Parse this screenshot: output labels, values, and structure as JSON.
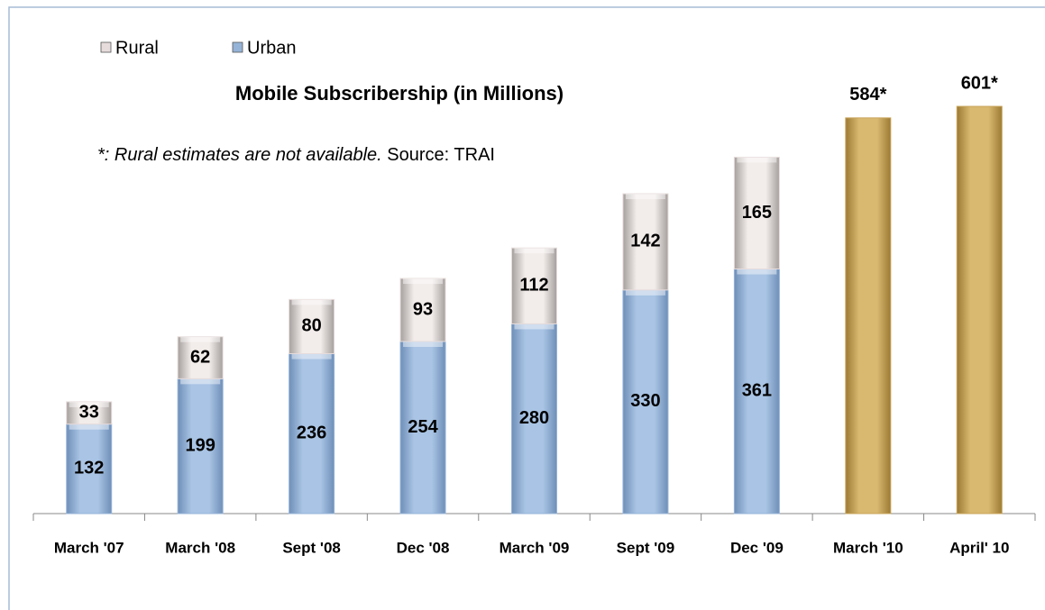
{
  "chart_data": {
    "type": "stacked_bar",
    "title": "Mobile Subscribership (in Millions)",
    "note": "*: Rural estimates are not available.",
    "source": "Source: TRAI",
    "categories": [
      "March '07",
      "March '08",
      "Sept '08",
      "Dec '08",
      "March '09",
      "Sept '09",
      "Dec '09",
      "March '10",
      "April' 10"
    ],
    "series": [
      {
        "name": "Urban",
        "color": "#95b3d7",
        "values": [
          132,
          199,
          236,
          254,
          280,
          330,
          361,
          null,
          null
        ]
      },
      {
        "name": "Rural",
        "color": "#e6dcdb",
        "values": [
          33,
          62,
          80,
          93,
          112,
          142,
          165,
          null,
          null
        ]
      }
    ],
    "totals": {
      "color": "#c9a45a",
      "values": [
        null,
        null,
        null,
        null,
        null,
        null,
        null,
        584,
        601
      ],
      "value_labels": [
        null,
        null,
        null,
        null,
        null,
        null,
        null,
        "584*",
        "601*"
      ]
    },
    "ylim": [
      0,
      625
    ],
    "legend": "top-left"
  }
}
